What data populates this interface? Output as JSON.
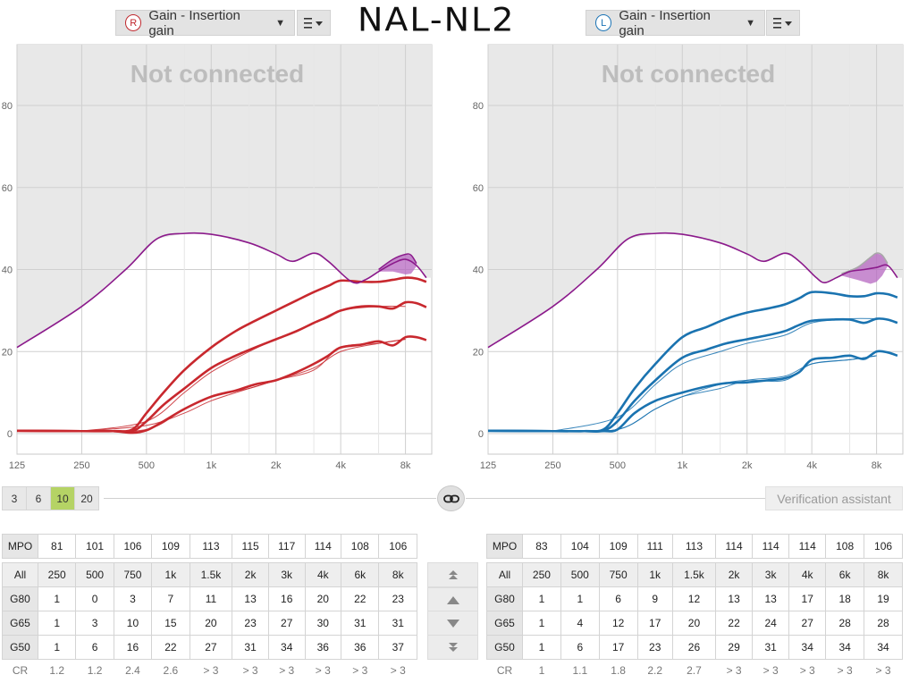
{
  "header": {
    "handwritten_note": "NAL-NL2",
    "left": {
      "ear_letter": "R",
      "ear_color": "#c0272d",
      "selector_label": "Gain - Insertion gain",
      "menu_icon": "list-menu-icon"
    },
    "right": {
      "ear_letter": "L",
      "ear_color": "#1a73b5",
      "selector_label": "Gain - Insertion gain",
      "menu_icon": "list-menu-icon"
    }
  },
  "charts": {
    "overlay_text": "Not connected",
    "y_ticks": [
      "0",
      "20",
      "40",
      "60",
      "80"
    ],
    "x_ticks": [
      "125",
      "250",
      "500",
      "1k",
      "2k",
      "4k",
      "8k"
    ],
    "colors": {
      "ucl": "#8b1a8b",
      "left_curve": "#c8282e",
      "right_curve": "#1a73b0",
      "disabled": "#e8e8e8"
    },
    "right_ear": {
      "ucl": [
        [
          125,
          21
        ],
        [
          250,
          31
        ],
        [
          400,
          40
        ],
        [
          560,
          47.5
        ],
        [
          750,
          48.8
        ],
        [
          1000,
          48.6
        ],
        [
          1500,
          46.5
        ],
        [
          2000,
          43.8
        ],
        [
          2400,
          42
        ],
        [
          3000,
          44
        ],
        [
          3500,
          42
        ],
        [
          4500,
          37
        ],
        [
          5200,
          37.5
        ],
        [
          6000,
          39.5
        ],
        [
          7000,
          41.5
        ],
        [
          8000,
          42.5
        ],
        [
          9000,
          41
        ],
        [
          10000,
          38
        ]
      ],
      "ucl_upper": [
        [
          6000,
          40
        ],
        [
          7000,
          42.5
        ],
        [
          8000,
          43.7
        ],
        [
          8500,
          43.5
        ],
        [
          9000,
          41.5
        ]
      ],
      "ucl_lower": [
        [
          6000,
          39.5
        ],
        [
          7000,
          39.5
        ],
        [
          8000,
          38.8
        ],
        [
          8500,
          39
        ],
        [
          9000,
          40.8
        ]
      ],
      "g50": [
        [
          125,
          0.7
        ],
        [
          250,
          0.6
        ],
        [
          350,
          0.6
        ],
        [
          430,
          0.2
        ],
        [
          500,
          0.8
        ],
        [
          600,
          3
        ],
        [
          750,
          6
        ],
        [
          1000,
          9
        ],
        [
          1300,
          10.5
        ],
        [
          1600,
          12
        ],
        [
          2000,
          13
        ],
        [
          2500,
          15
        ],
        [
          3000,
          17
        ],
        [
          3500,
          19
        ],
        [
          4000,
          21
        ],
        [
          5000,
          21.7
        ],
        [
          6000,
          22.5
        ],
        [
          7000,
          21.5
        ],
        [
          8000,
          23.5
        ],
        [
          9000,
          23.5
        ],
        [
          10000,
          22.8
        ]
      ],
      "g65": [
        [
          125,
          0.7
        ],
        [
          250,
          0.6
        ],
        [
          350,
          0.6
        ],
        [
          430,
          0.6
        ],
        [
          500,
          3
        ],
        [
          600,
          7
        ],
        [
          750,
          11
        ],
        [
          1000,
          16
        ],
        [
          1300,
          19
        ],
        [
          1600,
          21
        ],
        [
          2000,
          23
        ],
        [
          2500,
          25
        ],
        [
          3000,
          27
        ],
        [
          3500,
          28.5
        ],
        [
          4000,
          30
        ],
        [
          5000,
          31
        ],
        [
          6000,
          31
        ],
        [
          7000,
          30.5
        ],
        [
          8000,
          32
        ],
        [
          9000,
          31.8
        ],
        [
          10000,
          30.8
        ]
      ],
      "g80": [
        [
          125,
          0.7
        ],
        [
          250,
          0.6
        ],
        [
          350,
          0.6
        ],
        [
          430,
          1
        ],
        [
          500,
          5
        ],
        [
          600,
          10
        ],
        [
          750,
          15.5
        ],
        [
          1000,
          21
        ],
        [
          1300,
          25
        ],
        [
          1600,
          27.5
        ],
        [
          2000,
          30
        ],
        [
          2500,
          32.5
        ],
        [
          3000,
          34.5
        ],
        [
          3500,
          36
        ],
        [
          4000,
          37.3
        ],
        [
          5000,
          37
        ],
        [
          6000,
          37
        ],
        [
          7000,
          37.5
        ],
        [
          8000,
          38
        ],
        [
          9000,
          37.8
        ],
        [
          10000,
          37
        ]
      ],
      "g50_target": [
        [
          250,
          0.6
        ],
        [
          500,
          1
        ],
        [
          750,
          6
        ],
        [
          1000,
          9
        ],
        [
          1500,
          11
        ],
        [
          2000,
          13
        ],
        [
          3000,
          15.5
        ],
        [
          4000,
          21
        ],
        [
          6000,
          22
        ],
        [
          8000,
          23
        ]
      ],
      "g65_target": [
        [
          250,
          0.6
        ],
        [
          500,
          3
        ],
        [
          750,
          10
        ],
        [
          1000,
          15
        ],
        [
          1500,
          20
        ],
        [
          2000,
          23
        ],
        [
          3000,
          27
        ],
        [
          4000,
          30
        ],
        [
          6000,
          31
        ],
        [
          8000,
          31
        ]
      ],
      "g80_target": [
        [
          250,
          0.6
        ],
        [
          500,
          2
        ],
        [
          750,
          5
        ],
        [
          1000,
          8
        ],
        [
          1500,
          11
        ],
        [
          2000,
          13
        ],
        [
          3000,
          16
        ],
        [
          4000,
          20
        ],
        [
          6000,
          22
        ],
        [
          8000,
          23
        ]
      ]
    },
    "left_ear": {
      "ucl": [
        [
          125,
          21
        ],
        [
          250,
          31
        ],
        [
          400,
          40
        ],
        [
          560,
          47.5
        ],
        [
          750,
          48.8
        ],
        [
          1000,
          48.6
        ],
        [
          1500,
          46.5
        ],
        [
          2000,
          43.8
        ],
        [
          2400,
          42
        ],
        [
          3000,
          44
        ],
        [
          3500,
          42
        ],
        [
          4200,
          38
        ],
        [
          4600,
          36.8
        ],
        [
          5200,
          38
        ],
        [
          6000,
          39.5
        ],
        [
          7000,
          40
        ],
        [
          8000,
          40.5
        ],
        [
          9000,
          41
        ],
        [
          10000,
          38
        ]
      ],
      "ucl_upper": [
        [
          5500,
          39
        ],
        [
          6500,
          40.5
        ],
        [
          7500,
          43
        ],
        [
          8000,
          44
        ],
        [
          8500,
          43.5
        ],
        [
          9000,
          41.5
        ]
      ],
      "ucl_lower": [
        [
          5500,
          38.5
        ],
        [
          6500,
          37.5
        ],
        [
          7500,
          36.5
        ],
        [
          8000,
          37
        ],
        [
          8500,
          38.5
        ],
        [
          9000,
          40.8
        ]
      ],
      "g50": [
        [
          125,
          0.7
        ],
        [
          250,
          0.6
        ],
        [
          350,
          0.6
        ],
        [
          430,
          0.6
        ],
        [
          500,
          1
        ],
        [
          600,
          5
        ],
        [
          750,
          8
        ],
        [
          1000,
          10
        ],
        [
          1300,
          11.5
        ],
        [
          1600,
          12.3
        ],
        [
          2000,
          12.5
        ],
        [
          2500,
          13
        ],
        [
          3000,
          13.5
        ],
        [
          3500,
          15
        ],
        [
          4000,
          18
        ],
        [
          5000,
          18.5
        ],
        [
          6000,
          19
        ],
        [
          7000,
          18.2
        ],
        [
          8000,
          20
        ],
        [
          9000,
          19.8
        ],
        [
          10000,
          19
        ]
      ],
      "g65": [
        [
          125,
          0.7
        ],
        [
          250,
          0.6
        ],
        [
          350,
          0.6
        ],
        [
          430,
          0.7
        ],
        [
          500,
          3
        ],
        [
          600,
          8
        ],
        [
          750,
          13
        ],
        [
          1000,
          18.5
        ],
        [
          1300,
          20.5
        ],
        [
          1600,
          22
        ],
        [
          2000,
          23
        ],
        [
          2500,
          24
        ],
        [
          3000,
          25
        ],
        [
          3500,
          26.5
        ],
        [
          4000,
          27.5
        ],
        [
          5000,
          27.8
        ],
        [
          6000,
          27.8
        ],
        [
          7000,
          27
        ],
        [
          8000,
          28
        ],
        [
          9000,
          27.8
        ],
        [
          10000,
          27
        ]
      ],
      "g80": [
        [
          125,
          0.7
        ],
        [
          250,
          0.6
        ],
        [
          350,
          0.6
        ],
        [
          430,
          1
        ],
        [
          500,
          5
        ],
        [
          600,
          11
        ],
        [
          750,
          17
        ],
        [
          1000,
          23.5
        ],
        [
          1300,
          26
        ],
        [
          1600,
          28
        ],
        [
          2000,
          29.5
        ],
        [
          2500,
          30.5
        ],
        [
          3000,
          31.5
        ],
        [
          3500,
          33
        ],
        [
          4000,
          34.5
        ],
        [
          5000,
          34.2
        ],
        [
          6000,
          33.5
        ],
        [
          7000,
          33.5
        ],
        [
          8000,
          34.2
        ],
        [
          9000,
          34
        ],
        [
          10000,
          33.2
        ]
      ],
      "g50_target": [
        [
          250,
          0.6
        ],
        [
          500,
          1
        ],
        [
          750,
          6
        ],
        [
          1000,
          9
        ],
        [
          1500,
          11
        ],
        [
          2000,
          13
        ],
        [
          3000,
          14
        ],
        [
          4000,
          17
        ],
        [
          6000,
          18
        ],
        [
          8000,
          19
        ]
      ],
      "g65_target": [
        [
          250,
          0.6
        ],
        [
          500,
          4
        ],
        [
          750,
          12
        ],
        [
          1000,
          17
        ],
        [
          1500,
          20
        ],
        [
          2000,
          22
        ],
        [
          3000,
          24
        ],
        [
          4000,
          27
        ],
        [
          6000,
          28
        ],
        [
          8000,
          28
        ]
      ],
      "g80_target": [
        [
          250,
          0.6
        ],
        [
          500,
          1
        ],
        [
          750,
          6
        ],
        [
          1000,
          9
        ],
        [
          1500,
          12
        ],
        [
          2000,
          13
        ],
        [
          3000,
          13
        ],
        [
          4000,
          17
        ],
        [
          6000,
          18
        ],
        [
          8000,
          19
        ]
      ]
    }
  },
  "controls": {
    "scale_buttons": [
      "3",
      "6",
      "10",
      "20"
    ],
    "active_scale": "10",
    "link_icon": "link-chain-icon",
    "verification_label": "Verification assistant"
  },
  "tables": {
    "right_ear": {
      "mpo_label": "MPO",
      "mpo": [
        "81",
        "101",
        "106",
        "109",
        "113",
        "115",
        "117",
        "114",
        "108",
        "106"
      ],
      "all_label": "All",
      "freqs": [
        "250",
        "500",
        "750",
        "1k",
        "1.5k",
        "2k",
        "3k",
        "4k",
        "6k",
        "8k"
      ],
      "rows": [
        {
          "label": "G80",
          "values": [
            "1",
            "0",
            "3",
            "7",
            "11",
            "13",
            "16",
            "20",
            "22",
            "23"
          ]
        },
        {
          "label": "G65",
          "values": [
            "1",
            "3",
            "10",
            "15",
            "20",
            "23",
            "27",
            "30",
            "31",
            "31"
          ]
        },
        {
          "label": "G50",
          "values": [
            "1",
            "6",
            "16",
            "22",
            "27",
            "31",
            "34",
            "36",
            "36",
            "37"
          ]
        }
      ],
      "cr_label": "CR",
      "cr": [
        "1.2",
        "1.2",
        "2.4",
        "2.6",
        "> 3",
        "> 3",
        "> 3",
        "> 3",
        "> 3",
        "> 3"
      ]
    },
    "left_ear": {
      "mpo_label": "MPO",
      "mpo": [
        "83",
        "104",
        "109",
        "111",
        "113",
        "114",
        "114",
        "114",
        "108",
        "106"
      ],
      "all_label": "All",
      "freqs": [
        "250",
        "500",
        "750",
        "1k",
        "1.5k",
        "2k",
        "3k",
        "4k",
        "6k",
        "8k"
      ],
      "rows": [
        {
          "label": "G80",
          "values": [
            "1",
            "1",
            "6",
            "9",
            "12",
            "13",
            "13",
            "17",
            "18",
            "19"
          ]
        },
        {
          "label": "G65",
          "values": [
            "1",
            "4",
            "12",
            "17",
            "20",
            "22",
            "24",
            "27",
            "28",
            "28"
          ]
        },
        {
          "label": "G50",
          "values": [
            "1",
            "6",
            "17",
            "23",
            "26",
            "29",
            "31",
            "34",
            "34",
            "34"
          ]
        }
      ],
      "cr_label": "CR",
      "cr": [
        "1",
        "1.1",
        "1.8",
        "2.2",
        "2.7",
        "> 3",
        "> 3",
        "> 3",
        "> 3",
        "> 3"
      ]
    }
  },
  "nudge_buttons": [
    "double-chevron-up-icon",
    "chevron-up-icon",
    "chevron-down-icon",
    "double-chevron-down-icon"
  ]
}
